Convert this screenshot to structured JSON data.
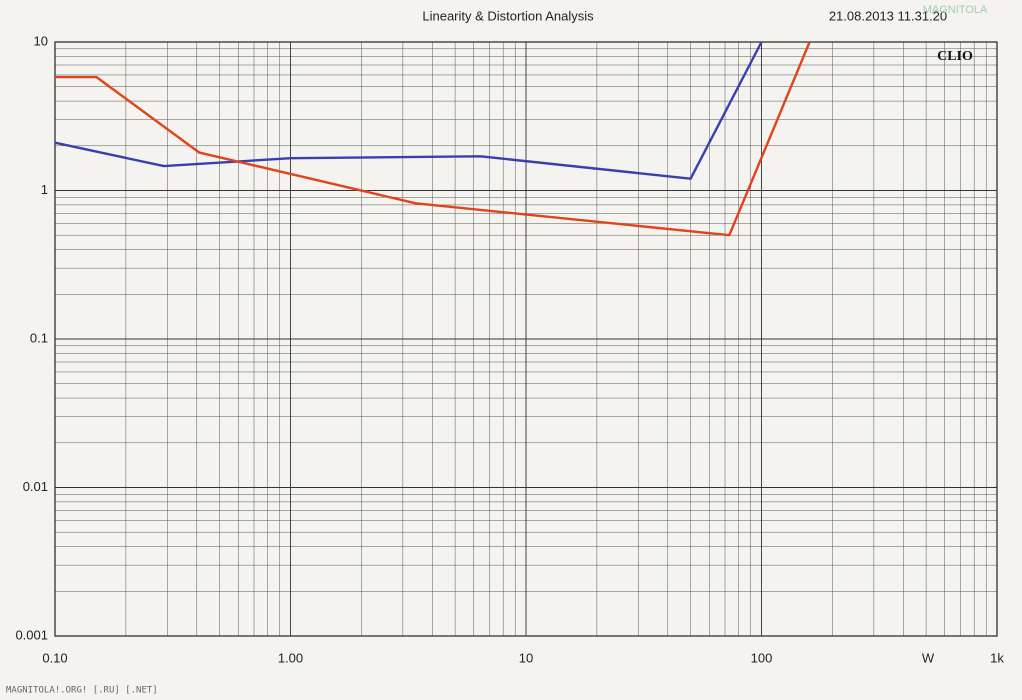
{
  "chart_data": {
    "type": "line",
    "title": "Linearity & Distortion Analysis",
    "timestamp": "21.08.2013 11.31.20",
    "brand": "CLIO",
    "xlabel": "W",
    "xscale": "log",
    "yscale": "log",
    "grid": true,
    "xlim": [
      0.1,
      1000
    ],
    "ylim": [
      0.001,
      10
    ],
    "xticks": [
      {
        "value": 0.1,
        "label": "0.10"
      },
      {
        "value": 1,
        "label": "1.00"
      },
      10,
      100,
      {
        "value": 1000,
        "label": "1k"
      }
    ],
    "yticks": [
      0.001,
      0.01,
      0.1,
      1,
      10
    ],
    "series": [
      {
        "color": "#3a3fb0",
        "x": [
          0.1,
          0.29,
          1,
          6.4,
          50,
          100
        ],
        "values": [
          2.1,
          1.46,
          1.65,
          1.7,
          1.2,
          10
        ]
      },
      {
        "color": "#e0441c",
        "x": [
          0.1,
          0.15,
          0.41,
          3.4,
          73,
          160
        ],
        "values": [
          5.8,
          5.8,
          1.8,
          0.82,
          0.5,
          10
        ]
      }
    ],
    "watermark": "MAGNITOLA!.ORG! [.RU] [.NET]",
    "logo": "MAGNITOLA"
  }
}
